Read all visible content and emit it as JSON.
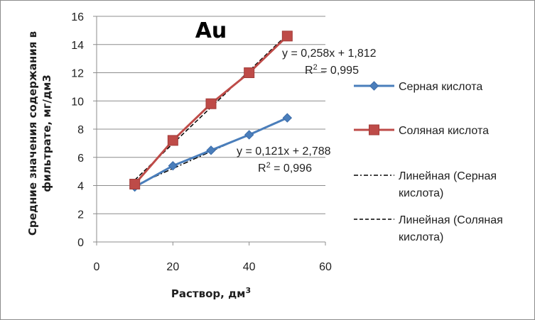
{
  "chart_data": {
    "type": "line",
    "title": "Au",
    "xlabel": "Раствор, дм",
    "xlabel_sup": "3",
    "ylabel_lines": [
      "Средние значения содержания в",
      "фильтрате, мг/дм3"
    ],
    "xlim": [
      0,
      60
    ],
    "ylim": [
      0,
      16
    ],
    "x_ticks": [
      "0",
      "20",
      "40",
      "60"
    ],
    "y_ticks": [
      "0",
      "2",
      "4",
      "6",
      "8",
      "10",
      "12",
      "14",
      "16"
    ],
    "grid": "horizontal",
    "legend_position": "right",
    "x": [
      10,
      20,
      30,
      40,
      50
    ],
    "series": [
      {
        "name": "Серная кислота",
        "color": "#4a7ebb",
        "marker": "diamond",
        "values": [
          3.9,
          5.4,
          6.5,
          7.6,
          8.8
        ]
      },
      {
        "name": "Соляная кислота",
        "color": "#be4b48",
        "marker": "square",
        "values": [
          4.1,
          7.2,
          9.8,
          12.0,
          14.6
        ]
      }
    ],
    "trendlines": [
      {
        "name_lines": [
          "Линейная (Серная",
          "кислота)"
        ],
        "slope": 0.121,
        "intercept": 2.788,
        "dash": "dashdot",
        "color": "#000000",
        "equation": "y = 0,121x + 2,788",
        "r2_label": "R",
        "r2_sup": "2",
        "r2_value": " = 0,996"
      },
      {
        "name_lines": [
          "Линейная (Соляная",
          "кислота)"
        ],
        "slope": 0.258,
        "intercept": 1.812,
        "dash": "dash",
        "color": "#000000",
        "equation": "y = 0,258x + 1,812",
        "r2_label": "R",
        "r2_sup": "2",
        "r2_value": " = 0,995"
      }
    ]
  }
}
